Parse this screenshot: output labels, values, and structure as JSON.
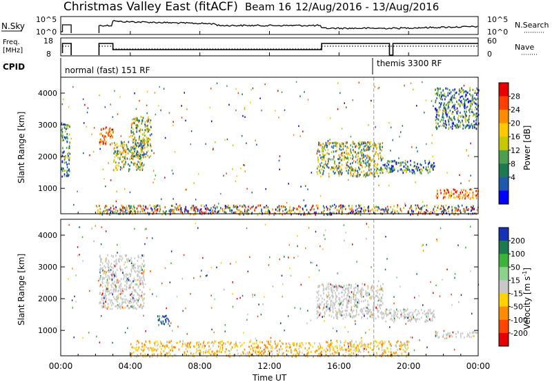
{
  "header": {
    "title": "Christmas Valley East (fitACF)",
    "beam": "Beam 16",
    "date_range": "12/Aug/2016 - 13/Aug/2016"
  },
  "nsky_panel": {
    "label": "N.Sky",
    "right_label": "N.Search",
    "left_ticks": [
      "10^5",
      "10^0"
    ],
    "right_ticks": [
      "10^5",
      "10^0"
    ]
  },
  "freq_panel": {
    "label_line1": "Freq.",
    "label_line2": "[MHz]",
    "right_label": "Nave",
    "left_ticks": [
      "18",
      "8"
    ],
    "right_ticks": [
      "60",
      "0"
    ]
  },
  "cpid_panel": {
    "label": "CPID",
    "mode1": "normal (fast) 151 RF",
    "mode2": "themis 3300 RF"
  },
  "power_cbar": {
    "label": "Power [dB]",
    "ticks": [
      "28",
      "24",
      "20",
      "16",
      "12",
      "8",
      "4"
    ],
    "colors": [
      "#e60000",
      "#ff4000",
      "#ff8c00",
      "#ffc800",
      "#c8c800",
      "#4ca04c",
      "#1e7850",
      "#1e5aaa",
      "#0000ff"
    ]
  },
  "velocity_cbar": {
    "label": "Velocity [m s",
    "label_sup": "-1",
    "label_end": "]",
    "ticks": [
      "200",
      "100",
      "50",
      "15",
      "-15",
      "-50",
      "-100",
      "-200"
    ],
    "colors": [
      "#1432b4",
      "#1e7850",
      "#3cb43c",
      "#8cd28c",
      "#c8c8c8",
      "#ffd200",
      "#ff8c00",
      "#ff4600",
      "#e60000"
    ]
  },
  "chart_data": [
    {
      "type": "heatmap",
      "name_hint": "power",
      "ylabel": "Slant Range [km]",
      "y_ticks": [
        "1000",
        "2000",
        "3000",
        "4000"
      ],
      "ylim": [
        200,
        4500
      ],
      "xlim": [
        0,
        24
      ],
      "x_unit": "hours UT",
      "regions": [
        {
          "t0": 2.2,
          "t1": 3.0,
          "r0": 2400,
          "r1": 3000,
          "level": "high"
        },
        {
          "t0": 3.0,
          "t1": 4.8,
          "r0": 1600,
          "r1": 2500,
          "level": "mid"
        },
        {
          "t0": 4.0,
          "t1": 5.2,
          "r0": 2000,
          "r1": 3300,
          "level": "mid"
        },
        {
          "t0": 0.0,
          "t1": 0.5,
          "r0": 1400,
          "r1": 3100,
          "level": "low"
        },
        {
          "t0": 14.7,
          "t1": 18.5,
          "r0": 1400,
          "r1": 2500,
          "level": "mid"
        },
        {
          "t0": 18.5,
          "t1": 21.5,
          "r0": 1500,
          "r1": 1900,
          "level": "low"
        },
        {
          "t0": 21.5,
          "t1": 24.0,
          "r0": 700,
          "r1": 1000,
          "level": "high"
        },
        {
          "t0": 21.5,
          "t1": 24.0,
          "r0": 2900,
          "r1": 4200,
          "level": "low"
        },
        {
          "t0": 2.0,
          "t1": 24.0,
          "r0": 200,
          "r1": 500,
          "level": "mixed"
        }
      ]
    },
    {
      "type": "heatmap",
      "name_hint": "velocity",
      "ylabel": "Slant Range [km]",
      "xlabel": "Time UT",
      "x_ticks": [
        "00:00",
        "04:00",
        "08:00",
        "12:00",
        "16:00",
        "20:00",
        "00:00"
      ],
      "y_ticks": [
        "1000",
        "2000",
        "3000",
        "4000"
      ],
      "ylim": [
        200,
        4500
      ],
      "xlim": [
        0,
        24
      ],
      "regions": [
        {
          "t0": 2.2,
          "t1": 4.8,
          "r0": 1700,
          "r1": 3400,
          "level": "neutral"
        },
        {
          "t0": 5.5,
          "t1": 6.2,
          "r0": 1200,
          "r1": 1500,
          "level": "positive"
        },
        {
          "t0": 14.7,
          "t1": 18.5,
          "r0": 1400,
          "r1": 2500,
          "level": "neutral"
        },
        {
          "t0": 18.5,
          "t1": 21.5,
          "r0": 1300,
          "r1": 1700,
          "level": "neutral"
        },
        {
          "t0": 21.5,
          "t1": 24.0,
          "r0": 800,
          "r1": 1000,
          "level": "neutral"
        },
        {
          "t0": 4.0,
          "t1": 20.0,
          "r0": 200,
          "r1": 700,
          "level": "negative"
        }
      ]
    }
  ]
}
